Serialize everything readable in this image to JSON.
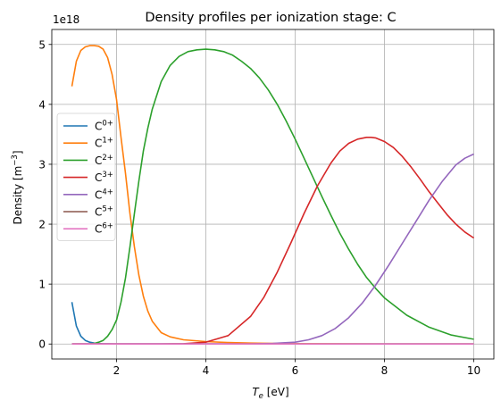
{
  "chart_data": {
    "type": "line",
    "title": "Density profiles per ionization stage: C",
    "xlabel": {
      "symbol": "T",
      "subscript": "e",
      "unit": "[eV]"
    },
    "ylabel": {
      "text": "Density [m",
      "exponent": "−3",
      "close": "]"
    },
    "y_offset_label": "1e18",
    "xlim": [
      0.55,
      10.45
    ],
    "ylim": [
      -0.25,
      5.25
    ],
    "x_ticks": [
      2,
      4,
      6,
      8,
      10
    ],
    "x_tick_labels": [
      "2",
      "4",
      "6",
      "8",
      "10"
    ],
    "y_ticks": [
      0,
      1,
      2,
      3,
      4,
      5
    ],
    "y_tick_labels": [
      "0",
      "1",
      "2",
      "3",
      "4",
      "5"
    ],
    "grid": true,
    "legend_position": "center-left",
    "series": [
      {
        "name": "C",
        "charge": "0+",
        "color": "#1f77b4",
        "x": [
          1.0,
          1.1,
          1.2,
          1.3,
          1.4,
          1.5,
          1.6,
          1.7,
          1.8,
          2.0,
          2.5,
          3.0,
          4.0,
          5.0,
          6.0,
          7.0,
          8.0,
          9.0,
          10.0
        ],
        "y": [
          0.7,
          0.3,
          0.13,
          0.06,
          0.03,
          0.015,
          0.008,
          0.004,
          0.002,
          0.0,
          0.0,
          0.0,
          0.0,
          0.0,
          0.0,
          0.0,
          0.0,
          0.0,
          0.0
        ]
      },
      {
        "name": "C",
        "charge": "1+",
        "color": "#ff7f0e",
        "x": [
          1.0,
          1.1,
          1.2,
          1.3,
          1.4,
          1.5,
          1.6,
          1.7,
          1.8,
          1.9,
          2.0,
          2.1,
          2.2,
          2.3,
          2.4,
          2.5,
          2.6,
          2.7,
          2.8,
          3.0,
          3.2,
          3.5,
          4.0,
          4.5,
          5.0,
          6.0,
          7.0,
          8.0,
          10.0
        ],
        "y": [
          4.3,
          4.72,
          4.9,
          4.96,
          4.98,
          4.98,
          4.97,
          4.92,
          4.78,
          4.5,
          4.08,
          3.45,
          2.85,
          2.18,
          1.62,
          1.15,
          0.8,
          0.55,
          0.38,
          0.19,
          0.12,
          0.07,
          0.04,
          0.025,
          0.015,
          0.005,
          0.002,
          0.0,
          0.0
        ]
      },
      {
        "name": "C",
        "charge": "2+",
        "color": "#2ca02c",
        "x": [
          1.0,
          1.2,
          1.4,
          1.5,
          1.6,
          1.7,
          1.8,
          1.9,
          2.0,
          2.1,
          2.2,
          2.3,
          2.4,
          2.5,
          2.6,
          2.7,
          2.8,
          3.0,
          3.2,
          3.4,
          3.6,
          3.8,
          4.0,
          4.2,
          4.4,
          4.6,
          4.8,
          5.0,
          5.2,
          5.4,
          5.6,
          5.8,
          6.0,
          6.2,
          6.4,
          6.6,
          6.8,
          7.0,
          7.2,
          7.4,
          7.6,
          7.8,
          8.0,
          8.5,
          9.0,
          9.5,
          10.0
        ],
        "y": [
          0.0,
          0.0,
          0.002,
          0.01,
          0.03,
          0.06,
          0.13,
          0.24,
          0.4,
          0.7,
          1.1,
          1.62,
          2.18,
          2.72,
          3.22,
          3.6,
          3.92,
          4.38,
          4.65,
          4.8,
          4.88,
          4.91,
          4.92,
          4.91,
          4.88,
          4.82,
          4.72,
          4.6,
          4.44,
          4.24,
          4.0,
          3.72,
          3.42,
          3.1,
          2.78,
          2.46,
          2.15,
          1.85,
          1.58,
          1.33,
          1.11,
          0.93,
          0.77,
          0.48,
          0.28,
          0.15,
          0.08
        ]
      },
      {
        "name": "C",
        "charge": "3+",
        "color": "#d62728",
        "x": [
          1.0,
          2.0,
          3.0,
          3.5,
          4.0,
          4.5,
          5.0,
          5.3,
          5.6,
          5.9,
          6.2,
          6.5,
          6.8,
          7.0,
          7.2,
          7.4,
          7.6,
          7.7,
          7.8,
          8.0,
          8.2,
          8.4,
          8.6,
          8.8,
          9.0,
          9.2,
          9.4,
          9.6,
          9.8,
          10.0
        ],
        "y": [
          0.0,
          0.0,
          0.0,
          0.005,
          0.03,
          0.14,
          0.46,
          0.78,
          1.2,
          1.68,
          2.18,
          2.64,
          3.02,
          3.22,
          3.35,
          3.42,
          3.45,
          3.45,
          3.44,
          3.38,
          3.28,
          3.13,
          2.95,
          2.75,
          2.54,
          2.35,
          2.16,
          2.0,
          1.87,
          1.77
        ]
      },
      {
        "name": "C",
        "charge": "4+",
        "color": "#9467bd",
        "x": [
          1.0,
          4.0,
          5.0,
          5.5,
          6.0,
          6.3,
          6.6,
          6.9,
          7.2,
          7.5,
          7.8,
          8.1,
          8.4,
          8.7,
          9.0,
          9.3,
          9.6,
          9.8,
          10.0
        ],
        "y": [
          0.0,
          0.0,
          0.0,
          0.01,
          0.03,
          0.07,
          0.14,
          0.26,
          0.44,
          0.68,
          0.98,
          1.32,
          1.68,
          2.04,
          2.4,
          2.72,
          2.99,
          3.1,
          3.17
        ]
      },
      {
        "name": "C",
        "charge": "5+",
        "color": "#8c564b",
        "x": [
          1.0,
          10.0
        ],
        "y": [
          0.0,
          0.0
        ]
      },
      {
        "name": "C",
        "charge": "6+",
        "color": "#e377c2",
        "x": [
          1.0,
          10.0
        ],
        "y": [
          0.0,
          0.0
        ]
      }
    ]
  }
}
